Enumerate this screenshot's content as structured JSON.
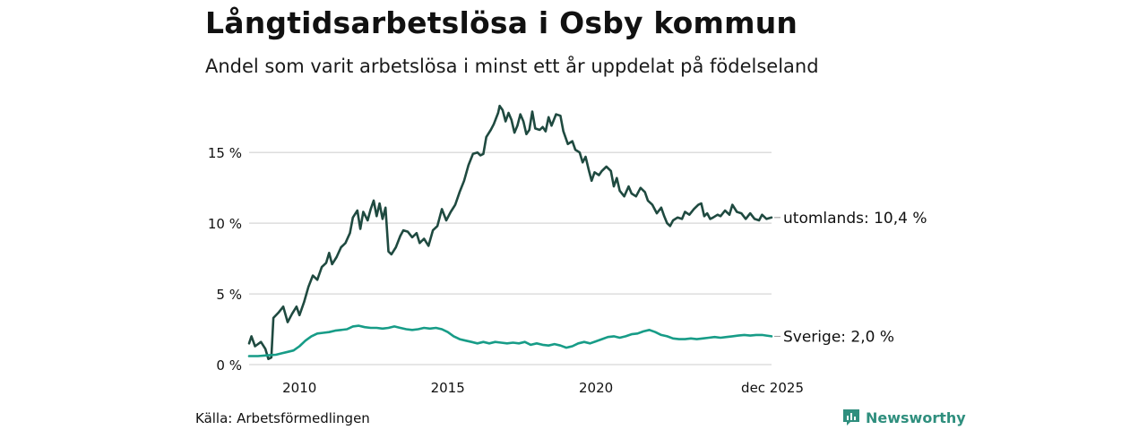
{
  "title": "Långtidsarbetslösa i Osby kommun",
  "subtitle": "Andel som varit arbetslösa i minst ett år uppdelat på födelseland",
  "source": "Källa: Arbetsförmedlingen",
  "brand": {
    "name": "Newsworthy",
    "icon": "newsworthy-logo-icon",
    "color": "#2f8f7e"
  },
  "chart_data": {
    "type": "line",
    "title": "Långtidsarbetslösa i Osby kommun",
    "subtitle": "Andel som varit arbetslösa i minst ett år uppdelat på födelseland",
    "xlabel": "",
    "ylabel": "",
    "x_range": [
      2008.3,
      2025.92
    ],
    "y_range": [
      0,
      18.5
    ],
    "y_ticks": [
      0,
      5,
      10,
      15
    ],
    "y_tick_labels": [
      "0 %",
      "5 %",
      "10 %",
      "15 %"
    ],
    "x_ticks": [
      2010,
      2015,
      2020,
      2025.92
    ],
    "x_tick_labels": [
      "2010",
      "2015",
      "2020",
      "dec 2025"
    ],
    "grid": true,
    "series": [
      {
        "name": "utomlands",
        "end_label": "utomlands: 10,4 %",
        "color": "#1f4a40",
        "points": [
          [
            2008.3,
            1.5
          ],
          [
            2008.38,
            2.0
          ],
          [
            2008.5,
            1.3
          ],
          [
            2008.7,
            1.6
          ],
          [
            2008.85,
            1.1
          ],
          [
            2008.95,
            0.4
          ],
          [
            2009.05,
            0.5
          ],
          [
            2009.12,
            3.3
          ],
          [
            2009.3,
            3.7
          ],
          [
            2009.45,
            4.1
          ],
          [
            2009.6,
            3.0
          ],
          [
            2009.75,
            3.6
          ],
          [
            2009.9,
            4.1
          ],
          [
            2010.0,
            3.5
          ],
          [
            2010.15,
            4.4
          ],
          [
            2010.3,
            5.5
          ],
          [
            2010.45,
            6.3
          ],
          [
            2010.6,
            6.0
          ],
          [
            2010.75,
            6.9
          ],
          [
            2010.9,
            7.2
          ],
          [
            2011.0,
            7.9
          ],
          [
            2011.1,
            7.1
          ],
          [
            2011.25,
            7.6
          ],
          [
            2011.4,
            8.3
          ],
          [
            2011.55,
            8.6
          ],
          [
            2011.7,
            9.3
          ],
          [
            2011.8,
            10.4
          ],
          [
            2011.95,
            10.9
          ],
          [
            2012.05,
            9.6
          ],
          [
            2012.15,
            10.8
          ],
          [
            2012.3,
            10.2
          ],
          [
            2012.4,
            11.0
          ],
          [
            2012.5,
            11.6
          ],
          [
            2012.6,
            10.5
          ],
          [
            2012.7,
            11.4
          ],
          [
            2012.8,
            10.3
          ],
          [
            2012.9,
            11.1
          ],
          [
            2013.0,
            8.0
          ],
          [
            2013.1,
            7.8
          ],
          [
            2013.25,
            8.3
          ],
          [
            2013.4,
            9.1
          ],
          [
            2013.5,
            9.5
          ],
          [
            2013.65,
            9.4
          ],
          [
            2013.8,
            9.0
          ],
          [
            2013.95,
            9.3
          ],
          [
            2014.05,
            8.6
          ],
          [
            2014.2,
            8.9
          ],
          [
            2014.35,
            8.4
          ],
          [
            2014.5,
            9.5
          ],
          [
            2014.65,
            9.8
          ],
          [
            2014.8,
            11.0
          ],
          [
            2014.95,
            10.2
          ],
          [
            2015.1,
            10.8
          ],
          [
            2015.25,
            11.3
          ],
          [
            2015.4,
            12.2
          ],
          [
            2015.55,
            13.0
          ],
          [
            2015.7,
            14.1
          ],
          [
            2015.85,
            14.9
          ],
          [
            2016.0,
            15.0
          ],
          [
            2016.1,
            14.8
          ],
          [
            2016.2,
            14.9
          ],
          [
            2016.3,
            16.1
          ],
          [
            2016.45,
            16.6
          ],
          [
            2016.55,
            17.0
          ],
          [
            2016.7,
            17.8
          ],
          [
            2016.75,
            18.3
          ],
          [
            2016.85,
            18.0
          ],
          [
            2016.95,
            17.2
          ],
          [
            2017.05,
            17.8
          ],
          [
            2017.15,
            17.3
          ],
          [
            2017.25,
            16.4
          ],
          [
            2017.35,
            16.9
          ],
          [
            2017.45,
            17.7
          ],
          [
            2017.55,
            17.2
          ],
          [
            2017.65,
            16.3
          ],
          [
            2017.75,
            16.6
          ],
          [
            2017.85,
            17.9
          ],
          [
            2017.95,
            16.7
          ],
          [
            2018.1,
            16.6
          ],
          [
            2018.2,
            16.8
          ],
          [
            2018.3,
            16.5
          ],
          [
            2018.4,
            17.5
          ],
          [
            2018.5,
            16.9
          ],
          [
            2018.65,
            17.7
          ],
          [
            2018.8,
            17.6
          ],
          [
            2018.9,
            16.5
          ],
          [
            2019.05,
            15.6
          ],
          [
            2019.2,
            15.8
          ],
          [
            2019.3,
            15.2
          ],
          [
            2019.45,
            15.0
          ],
          [
            2019.55,
            14.3
          ],
          [
            2019.65,
            14.7
          ],
          [
            2019.75,
            13.8
          ],
          [
            2019.85,
            13.0
          ],
          [
            2019.95,
            13.6
          ],
          [
            2020.1,
            13.4
          ],
          [
            2020.2,
            13.7
          ],
          [
            2020.35,
            14.0
          ],
          [
            2020.5,
            13.7
          ],
          [
            2020.6,
            12.6
          ],
          [
            2020.7,
            13.2
          ],
          [
            2020.8,
            12.3
          ],
          [
            2020.95,
            11.9
          ],
          [
            2021.1,
            12.6
          ],
          [
            2021.2,
            12.1
          ],
          [
            2021.35,
            11.9
          ],
          [
            2021.5,
            12.5
          ],
          [
            2021.65,
            12.2
          ],
          [
            2021.75,
            11.6
          ],
          [
            2021.9,
            11.3
          ],
          [
            2022.05,
            10.7
          ],
          [
            2022.2,
            11.1
          ],
          [
            2022.3,
            10.5
          ],
          [
            2022.4,
            10.0
          ],
          [
            2022.5,
            9.8
          ],
          [
            2022.6,
            10.2
          ],
          [
            2022.75,
            10.4
          ],
          [
            2022.9,
            10.3
          ],
          [
            2023.0,
            10.8
          ],
          [
            2023.15,
            10.6
          ],
          [
            2023.3,
            11.0
          ],
          [
            2023.45,
            11.3
          ],
          [
            2023.55,
            11.4
          ],
          [
            2023.65,
            10.5
          ],
          [
            2023.75,
            10.7
          ],
          [
            2023.85,
            10.3
          ],
          [
            2023.95,
            10.4
          ],
          [
            2024.1,
            10.6
          ],
          [
            2024.2,
            10.5
          ],
          [
            2024.35,
            10.9
          ],
          [
            2024.5,
            10.6
          ],
          [
            2024.6,
            11.3
          ],
          [
            2024.75,
            10.8
          ],
          [
            2024.9,
            10.7
          ],
          [
            2025.05,
            10.3
          ],
          [
            2025.2,
            10.7
          ],
          [
            2025.35,
            10.3
          ],
          [
            2025.5,
            10.2
          ],
          [
            2025.6,
            10.6
          ],
          [
            2025.75,
            10.3
          ],
          [
            2025.92,
            10.4
          ]
        ]
      },
      {
        "name": "Sverige",
        "end_label": "Sverige:  2,0 %",
        "color": "#179c87",
        "points": [
          [
            2008.3,
            0.6
          ],
          [
            2008.6,
            0.6
          ],
          [
            2008.9,
            0.65
          ],
          [
            2009.2,
            0.7
          ],
          [
            2009.4,
            0.8
          ],
          [
            2009.6,
            0.9
          ],
          [
            2009.8,
            1.0
          ],
          [
            2010.0,
            1.3
          ],
          [
            2010.2,
            1.7
          ],
          [
            2010.4,
            2.0
          ],
          [
            2010.6,
            2.2
          ],
          [
            2010.8,
            2.25
          ],
          [
            2011.0,
            2.3
          ],
          [
            2011.2,
            2.4
          ],
          [
            2011.4,
            2.45
          ],
          [
            2011.6,
            2.5
          ],
          [
            2011.8,
            2.7
          ],
          [
            2012.0,
            2.75
          ],
          [
            2012.2,
            2.65
          ],
          [
            2012.4,
            2.6
          ],
          [
            2012.6,
            2.6
          ],
          [
            2012.8,
            2.55
          ],
          [
            2013.0,
            2.6
          ],
          [
            2013.2,
            2.7
          ],
          [
            2013.4,
            2.6
          ],
          [
            2013.6,
            2.5
          ],
          [
            2013.8,
            2.45
          ],
          [
            2014.0,
            2.5
          ],
          [
            2014.2,
            2.6
          ],
          [
            2014.4,
            2.55
          ],
          [
            2014.6,
            2.6
          ],
          [
            2014.8,
            2.5
          ],
          [
            2015.0,
            2.3
          ],
          [
            2015.2,
            2.0
          ],
          [
            2015.4,
            1.8
          ],
          [
            2015.6,
            1.7
          ],
          [
            2015.8,
            1.6
          ],
          [
            2016.0,
            1.5
          ],
          [
            2016.2,
            1.6
          ],
          [
            2016.4,
            1.5
          ],
          [
            2016.6,
            1.6
          ],
          [
            2016.8,
            1.55
          ],
          [
            2017.0,
            1.5
          ],
          [
            2017.2,
            1.55
          ],
          [
            2017.4,
            1.5
          ],
          [
            2017.6,
            1.6
          ],
          [
            2017.8,
            1.4
          ],
          [
            2018.0,
            1.5
          ],
          [
            2018.2,
            1.4
          ],
          [
            2018.4,
            1.35
          ],
          [
            2018.6,
            1.45
          ],
          [
            2018.8,
            1.35
          ],
          [
            2019.0,
            1.2
          ],
          [
            2019.2,
            1.3
          ],
          [
            2019.4,
            1.5
          ],
          [
            2019.6,
            1.6
          ],
          [
            2019.8,
            1.5
          ],
          [
            2020.0,
            1.65
          ],
          [
            2020.2,
            1.8
          ],
          [
            2020.4,
            1.95
          ],
          [
            2020.6,
            2.0
          ],
          [
            2020.8,
            1.9
          ],
          [
            2021.0,
            2.0
          ],
          [
            2021.2,
            2.15
          ],
          [
            2021.4,
            2.2
          ],
          [
            2021.6,
            2.35
          ],
          [
            2021.8,
            2.45
          ],
          [
            2022.0,
            2.3
          ],
          [
            2022.2,
            2.1
          ],
          [
            2022.4,
            2.0
          ],
          [
            2022.6,
            1.85
          ],
          [
            2022.8,
            1.8
          ],
          [
            2023.0,
            1.8
          ],
          [
            2023.2,
            1.85
          ],
          [
            2023.4,
            1.8
          ],
          [
            2023.6,
            1.85
          ],
          [
            2023.8,
            1.9
          ],
          [
            2024.0,
            1.95
          ],
          [
            2024.2,
            1.9
          ],
          [
            2024.4,
            1.95
          ],
          [
            2024.6,
            2.0
          ],
          [
            2024.8,
            2.05
          ],
          [
            2025.0,
            2.1
          ],
          [
            2025.2,
            2.05
          ],
          [
            2025.4,
            2.1
          ],
          [
            2025.6,
            2.1
          ],
          [
            2025.75,
            2.05
          ],
          [
            2025.92,
            2.0
          ]
        ]
      }
    ]
  }
}
